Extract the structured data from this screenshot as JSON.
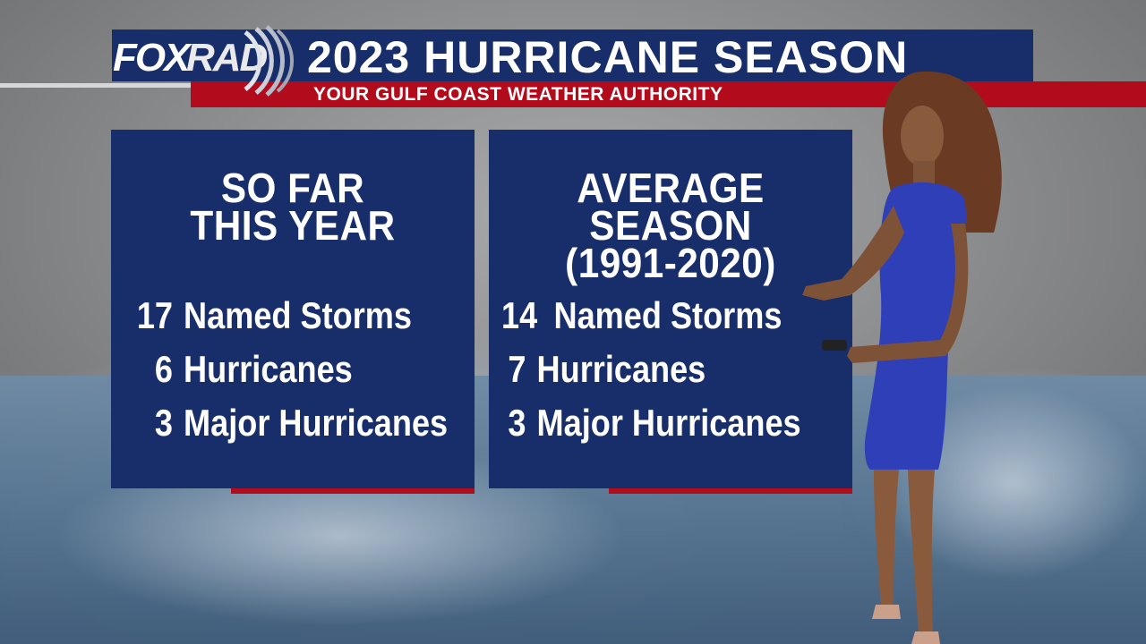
{
  "header": {
    "logo_fox": "FOX",
    "logo_rad": "RAD",
    "title": "2023 HURRICANE SEASON",
    "subtitle": "YOUR GULF COAST WEATHER AUTHORITY"
  },
  "panels": [
    {
      "heading_line1": "SO FAR",
      "heading_line2": "THIS YEAR",
      "stats": [
        {
          "number": "17",
          "label": "Named Storms"
        },
        {
          "number": "6",
          "label": "Hurricanes"
        },
        {
          "number": "3",
          "label": "Major Hurricanes"
        }
      ]
    },
    {
      "heading_line1": "AVERAGE SEASON",
      "heading_line2": "(1991-2020)",
      "stats": [
        {
          "number": "14",
          "label": "Named Storms"
        },
        {
          "number": "7",
          "label": "Hurricanes"
        },
        {
          "number": "3",
          "label": "Major Hurricanes"
        }
      ]
    }
  ],
  "colors": {
    "panel_navy": "#172e6a",
    "accent_red": "#b10b1c",
    "text_white": "#ffffff"
  },
  "icons": [
    "radar-waves-icon"
  ]
}
